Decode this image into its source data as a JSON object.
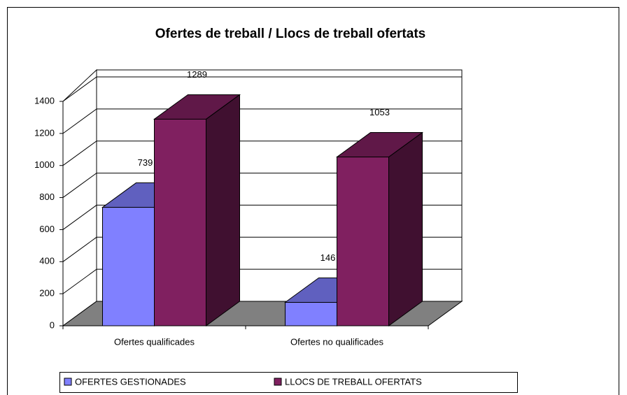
{
  "chart_data": {
    "type": "bar3d",
    "title": "Ofertes de treball / Llocs de treball ofertats",
    "categories": [
      "Ofertes qualificades",
      "Ofertes no qualificades"
    ],
    "series": [
      {
        "name": "OFERTES GESTIONADES",
        "color": "#8080ff",
        "values": [
          739,
          146
        ]
      },
      {
        "name": "LLOCS DE TREBALL OFERTATS",
        "color": "#802060",
        "values": [
          1289,
          1053
        ]
      }
    ],
    "ylim": [
      0,
      1400
    ],
    "yticks": [
      0,
      200,
      400,
      600,
      800,
      1000,
      1200,
      1400
    ],
    "grid": true,
    "legend": "bottom"
  }
}
